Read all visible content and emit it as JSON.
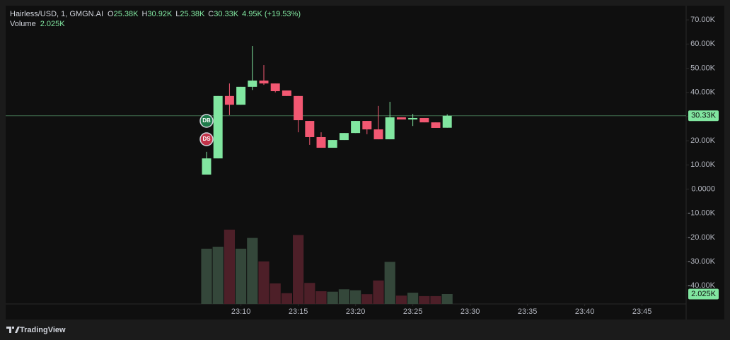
{
  "chart_data": {
    "type": "candlestick",
    "legend": {
      "symbol": "Hairless/USD, 1, GMGN.AI",
      "fields": [
        {
          "label": "O",
          "value": "25.38K"
        },
        {
          "label": "H",
          "value": "30.92K"
        },
        {
          "label": "L",
          "value": "25.38K"
        },
        {
          "label": "C",
          "value": "30.33K"
        }
      ],
      "change": "4.95K (+19.53%)",
      "volume_label": "Volume",
      "volume_value": "2.025K"
    },
    "ylim": [
      -47.51,
      75.88
    ],
    "yticks": [
      {
        "value": 70,
        "label": "70.00K"
      },
      {
        "value": 60,
        "label": "60.00K"
      },
      {
        "value": 50,
        "label": "50.00K"
      },
      {
        "value": 40,
        "label": "40.00K"
      },
      {
        "value": 30,
        "label": "30.00K"
      },
      {
        "value": 20,
        "label": "20.00K"
      },
      {
        "value": 10,
        "label": "10.00K"
      },
      {
        "value": 0,
        "label": "0.0000"
      },
      {
        "value": -10,
        "label": "-10.00K"
      },
      {
        "value": -20,
        "label": "-20.00K"
      },
      {
        "value": -30,
        "label": "-30.00K"
      },
      {
        "value": -40,
        "label": "-40.00K"
      }
    ],
    "xlim": [
      -17.53,
      41.85
    ],
    "xticks": [
      {
        "value": 3,
        "label": "23:10"
      },
      {
        "value": 8,
        "label": "23:15"
      },
      {
        "value": 13,
        "label": "23:20"
      },
      {
        "value": 18,
        "label": "23:25"
      },
      {
        "value": 23,
        "label": "23:30"
      },
      {
        "value": 28,
        "label": "23:35"
      },
      {
        "value": 33,
        "label": "23:40"
      },
      {
        "value": 38,
        "label": "23:45"
      }
    ],
    "open": [
      6.0,
      12.7,
      38.5,
      34.9,
      42.3,
      44.9,
      43.7,
      40.8,
      38.5,
      28.2,
      21.5,
      17.1,
      20.3,
      23.2,
      28.2,
      24.7,
      20.6,
      29.7,
      28.8,
      29.4,
      27.6,
      25.38
    ],
    "high": [
      15.4,
      38.5,
      43.7,
      42.3,
      59.2,
      51.3,
      43.7,
      40.8,
      38.5,
      28.2,
      23.5,
      20.3,
      23.2,
      28.2,
      28.2,
      34.4,
      36.1,
      29.7,
      31.1,
      29.4,
      27.6,
      30.92
    ],
    "low": [
      6.0,
      12.7,
      30.6,
      34.9,
      41.0,
      43.1,
      40.0,
      38.5,
      23.5,
      18.3,
      17.1,
      17.1,
      20.3,
      23.2,
      22.7,
      20.6,
      20.6,
      28.8,
      26.1,
      27.6,
      25.3,
      25.38
    ],
    "close": [
      12.7,
      38.5,
      34.9,
      42.3,
      44.9,
      43.7,
      40.5,
      38.5,
      28.5,
      21.5,
      17.1,
      20.3,
      23.2,
      28.2,
      24.7,
      20.6,
      29.7,
      28.8,
      29.4,
      27.6,
      25.3,
      30.33
    ],
    "close_label": "30.33K",
    "volume": [
      11300,
      11700,
      15200,
      11300,
      13500,
      8700,
      4200,
      2200,
      14100,
      4300,
      2600,
      2500,
      3000,
      2800,
      2000,
      4800,
      8600,
      1700,
      2300,
      1600,
      1600,
      2025
    ],
    "volume_label": "2.025K",
    "y2lim": [
      0,
      61000
    ],
    "up_color": "#81e6a0",
    "down_color": "#f25872",
    "volume_up_color": "#34473a",
    "volume_down_color": "#4d1f28",
    "markers": [
      "DB",
      "DS"
    ],
    "brand": "TradingView"
  }
}
